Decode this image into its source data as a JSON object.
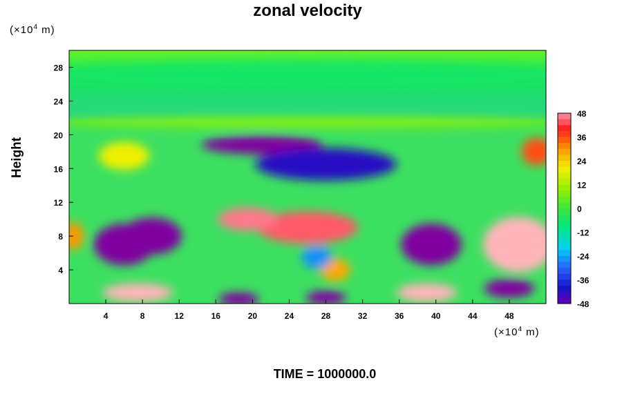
{
  "chart_data": {
    "type": "heatmap",
    "title": "zonal velocity",
    "ylabel": "Height",
    "y_unit": "(×10⁴ m)",
    "x_unit": "(×10⁴ m)",
    "footer": "TIME = 1000000.0",
    "xlim": [
      0,
      52
    ],
    "ylim": [
      0,
      30
    ],
    "x_ticks": [
      4,
      8,
      12,
      16,
      20,
      24,
      28,
      32,
      36,
      40,
      44,
      48
    ],
    "y_ticks": [
      4,
      8,
      12,
      16,
      20,
      24,
      28
    ],
    "colorbar": {
      "range": [
        -48,
        48
      ],
      "ticks": [
        48,
        36,
        24,
        12,
        0,
        -12,
        -24,
        -36,
        -48
      ]
    },
    "features": [
      {
        "x": 26,
        "y": 27,
        "value": -6
      },
      {
        "x": 26,
        "y": 21.5,
        "value": 8
      },
      {
        "x": 21,
        "y": 18.8,
        "value": -52
      },
      {
        "x": 28,
        "y": 16.5,
        "value": -42
      },
      {
        "x": 6,
        "y": 17.5,
        "value": 20
      },
      {
        "x": 51,
        "y": 18,
        "value": 36
      },
      {
        "x": 6,
        "y": 7,
        "value": -52
      },
      {
        "x": 9,
        "y": 8,
        "value": -52
      },
      {
        "x": 26,
        "y": 9,
        "value": 44
      },
      {
        "x": 19.5,
        "y": 10,
        "value": 46
      },
      {
        "x": 39.5,
        "y": 7,
        "value": -52
      },
      {
        "x": 49,
        "y": 7,
        "value": 52
      },
      {
        "x": 7.5,
        "y": 1.3,
        "value": 52
      },
      {
        "x": 39,
        "y": 1.3,
        "value": 52
      },
      {
        "x": 48,
        "y": 1.8,
        "value": -52
      },
      {
        "x": 18.5,
        "y": 0.5,
        "value": -52
      },
      {
        "x": 28,
        "y": 0.7,
        "value": -52
      },
      {
        "x": 29,
        "y": 4,
        "value": 28
      },
      {
        "x": 0.5,
        "y": 8,
        "value": 30
      },
      {
        "x": 27,
        "y": 5.5,
        "value": -26
      }
    ]
  }
}
